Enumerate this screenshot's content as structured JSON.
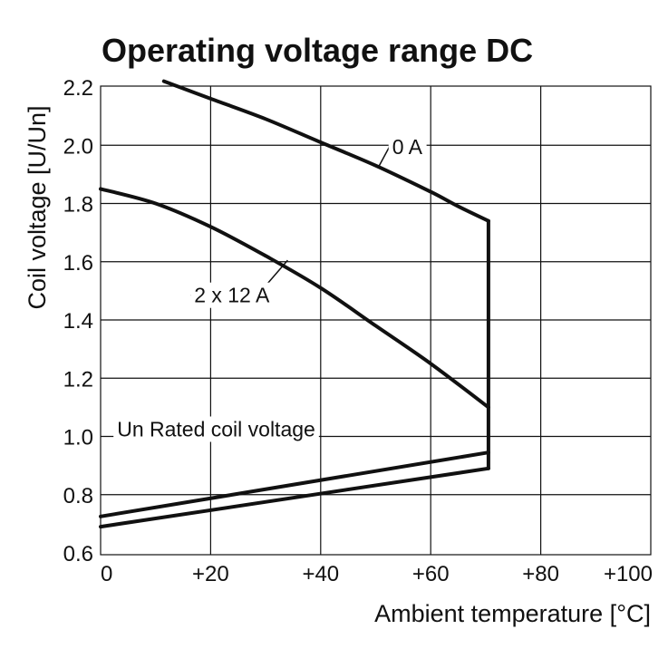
{
  "chart_data": {
    "type": "line",
    "title": "Operating voltage range DC",
    "xlabel": "Ambient temperature [°C]",
    "ylabel": "Coil voltage [U/Un]",
    "xlim": [
      0,
      100
    ],
    "ylim": [
      0.6,
      2.2
    ],
    "x_ticks": [
      0,
      20,
      40,
      60,
      80,
      100
    ],
    "x_tick_labels": [
      "0",
      "+20",
      "+40",
      "+60",
      "+80",
      "+100"
    ],
    "y_ticks": [
      0.6,
      0.8,
      1.0,
      1.2,
      1.4,
      1.6,
      1.8,
      2.0,
      2.2
    ],
    "y_tick_labels": [
      "0.6",
      "0.8",
      "1.0",
      "1.2",
      "1.4",
      "1.6",
      "1.8",
      "2.0",
      "2.2"
    ],
    "grid": true,
    "series": [
      {
        "name": "0 A",
        "x": [
          11.5,
          20,
          30,
          40,
          50,
          60,
          65,
          70.5
        ],
        "y": [
          2.22,
          2.16,
          2.09,
          2.01,
          1.93,
          1.84,
          1.79,
          1.74
        ]
      },
      {
        "name": "2 x 12 A",
        "x": [
          0,
          10,
          20,
          30,
          40,
          50,
          60,
          70.5
        ],
        "y": [
          1.85,
          1.8,
          1.72,
          1.62,
          1.51,
          1.38,
          1.25,
          1.1
        ]
      },
      {
        "name": "",
        "x": [
          0,
          70.5
        ],
        "y": [
          0.725,
          0.945
        ]
      },
      {
        "name": "",
        "x": [
          0,
          70.5
        ],
        "y": [
          0.69,
          0.89
        ]
      },
      {
        "name": "",
        "x": [
          70.5,
          70.5
        ],
        "y": [
          0.89,
          1.74
        ]
      }
    ],
    "annotations": [
      {
        "text": "0 A",
        "x": 53,
        "y": 1.97,
        "anchor_x": 50.5,
        "anchor_y": 1.925,
        "elbow_x": 52.5
      },
      {
        "text": "2 x 12 A",
        "x": 17,
        "y": 1.46,
        "anchor_x": 34,
        "anchor_y": 1.605,
        "elbow_x": 28.5
      },
      {
        "text": "Un Rated coil voltage",
        "x": 3,
        "y": 1.0,
        "anchor_x": null,
        "anchor_y": null,
        "elbow_x": null
      }
    ]
  }
}
